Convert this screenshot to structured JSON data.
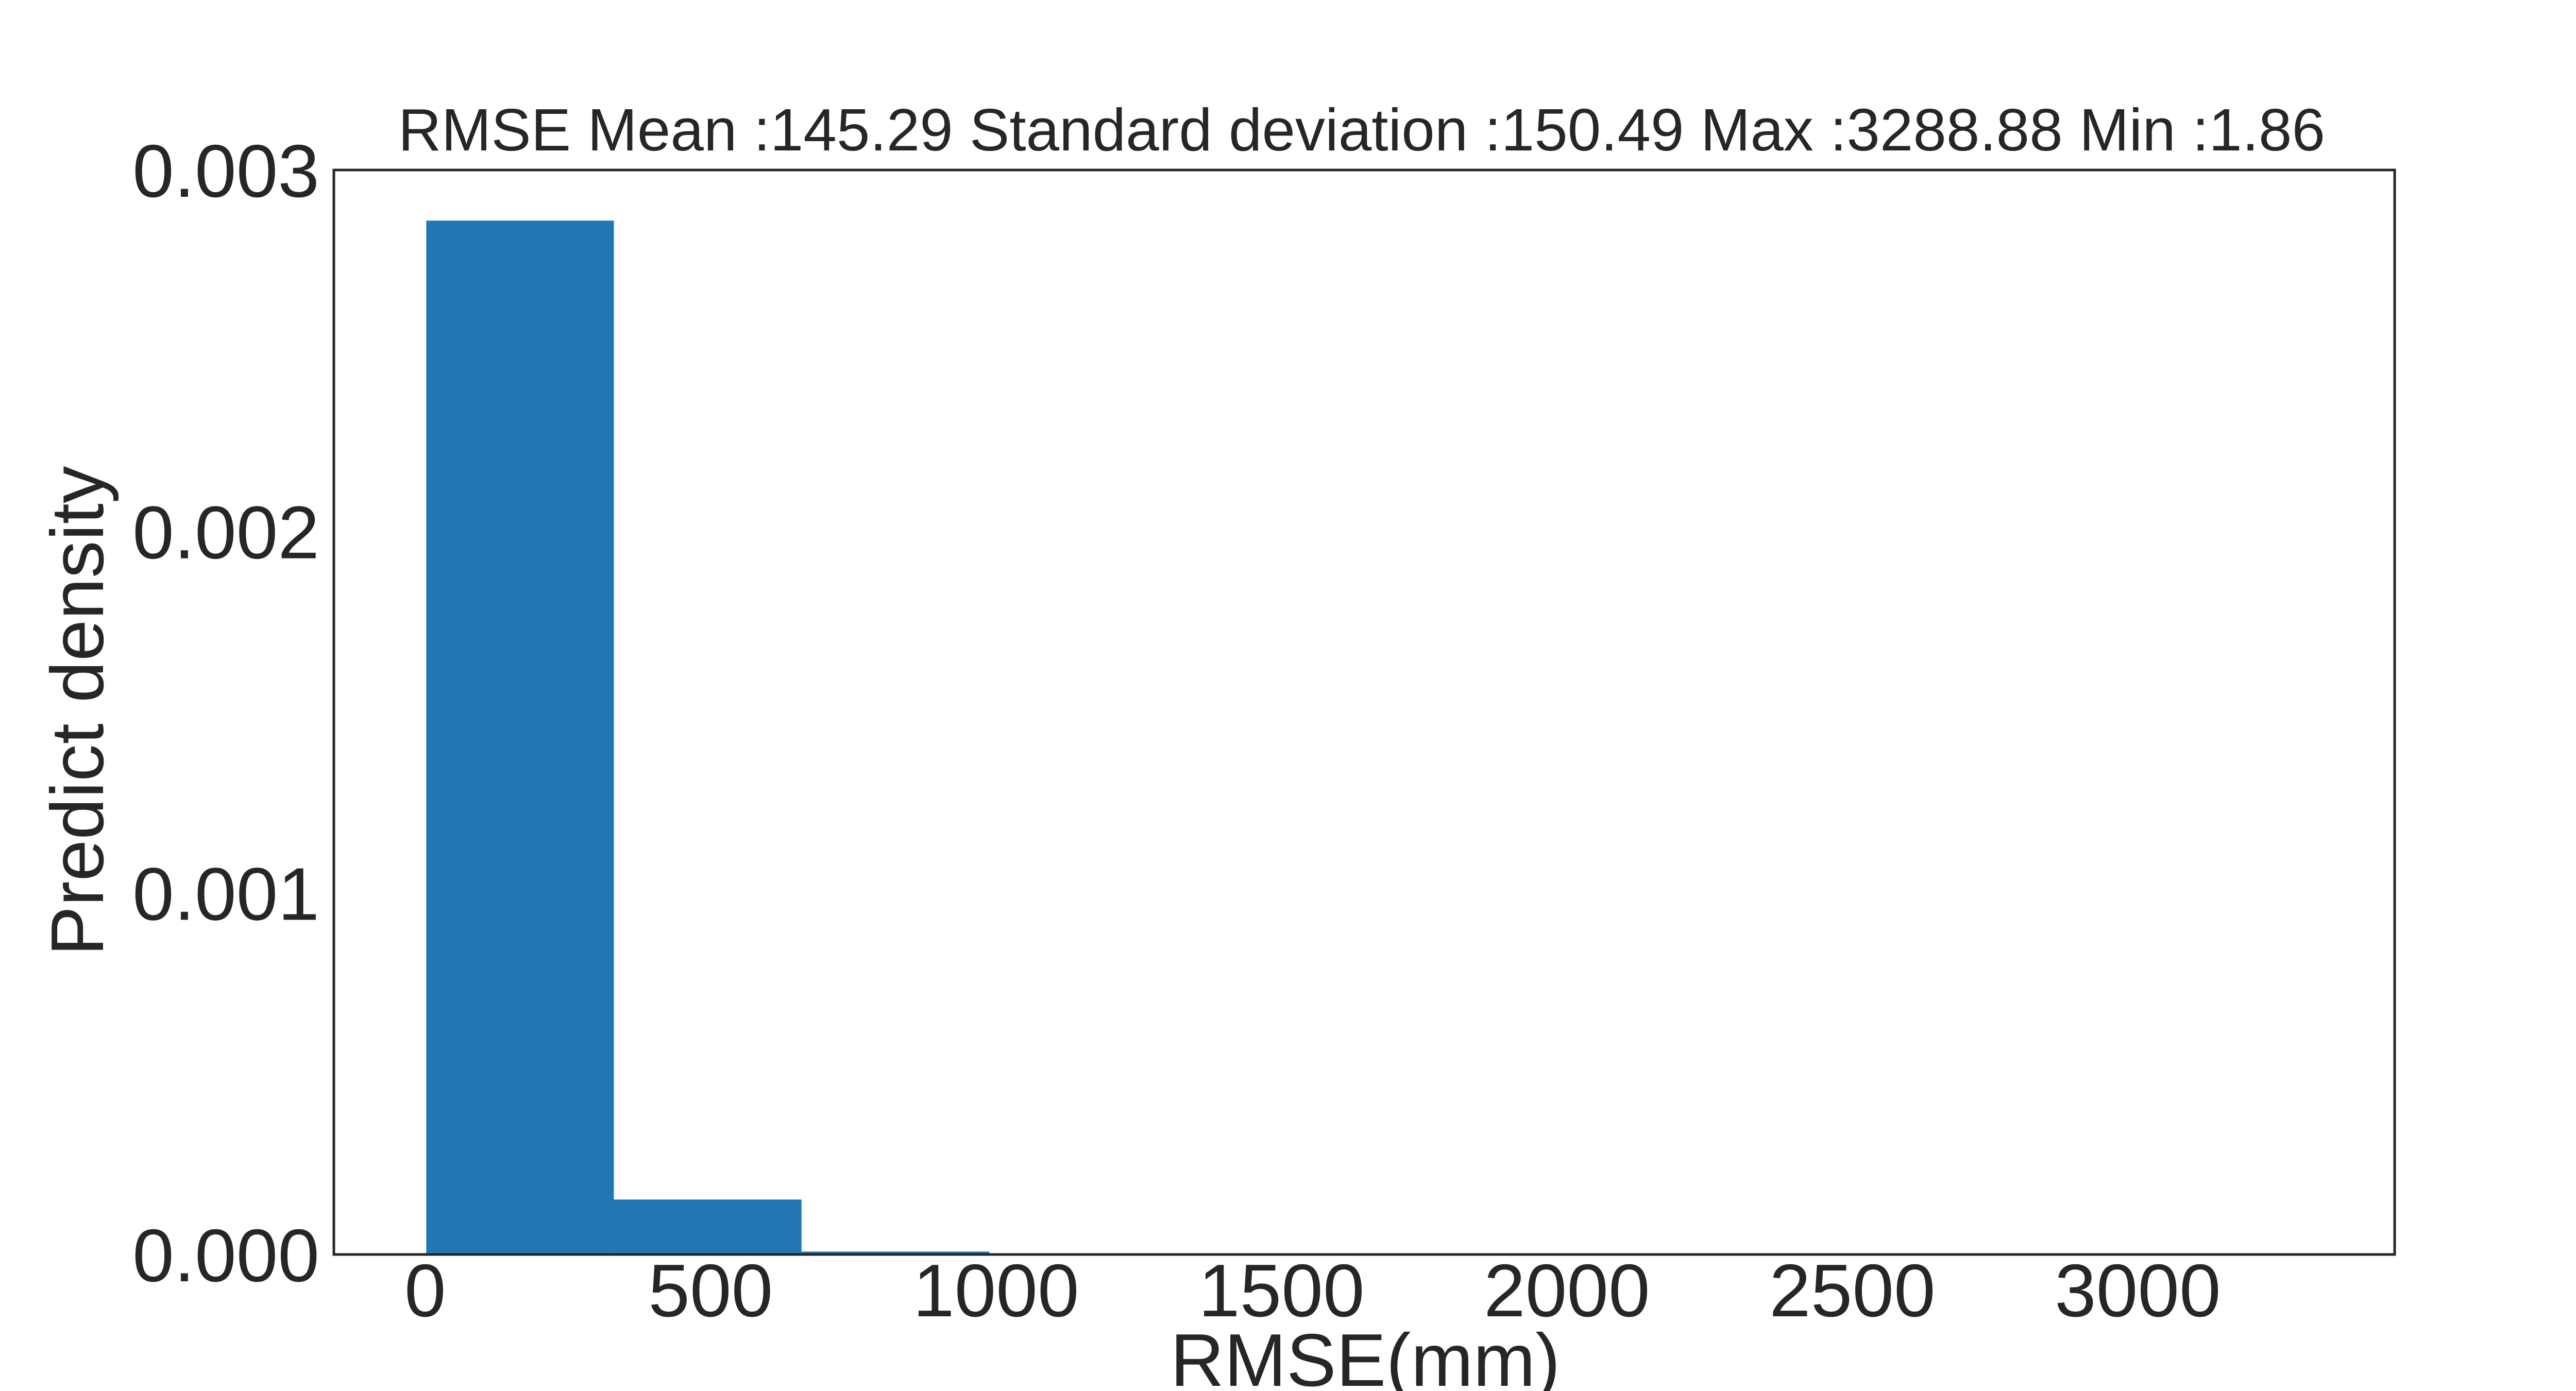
{
  "chart_data": {
    "type": "bar",
    "title": "RMSE Mean :145.29 Standard deviation :150.49 Max :3288.88 Min :1.86",
    "xlabel": "RMSE(mm)",
    "ylabel": "Predict density",
    "xlim": [
      -160,
      3450
    ],
    "ylim": [
      0,
      0.003
    ],
    "xticks": [
      0,
      500,
      1000,
      1500,
      2000,
      2500,
      3000
    ],
    "xtick_labels": [
      "0",
      "500",
      "1000",
      "1500",
      "2000",
      "2500",
      "3000"
    ],
    "yticks": [
      0,
      0.001,
      0.002,
      0.003
    ],
    "ytick_labels": [
      "0.000",
      "0.001",
      "0.002",
      "0.003"
    ],
    "bins": [
      {
        "start": 1.86,
        "end": 330.56,
        "value": 0.00286
      },
      {
        "start": 330.56,
        "end": 659.26,
        "value": 0.000152
      },
      {
        "start": 659.26,
        "end": 987.96,
        "value": 8e-06
      },
      {
        "start": 987.96,
        "end": 1316.66,
        "value": 5e-07
      },
      {
        "start": 1316.66,
        "end": 1645.36,
        "value": 2e-07
      },
      {
        "start": 1645.36,
        "end": 1974.06,
        "value": 1e-07
      },
      {
        "start": 1974.06,
        "end": 2302.76,
        "value": 1e-07
      },
      {
        "start": 2302.76,
        "end": 2631.46,
        "value": 0
      },
      {
        "start": 2631.46,
        "end": 2960.16,
        "value": 0
      },
      {
        "start": 2960.16,
        "end": 3288.88,
        "value": 1e-07
      }
    ],
    "bar_color": "#2077b4",
    "grid": false,
    "axes_color": "#262626"
  }
}
